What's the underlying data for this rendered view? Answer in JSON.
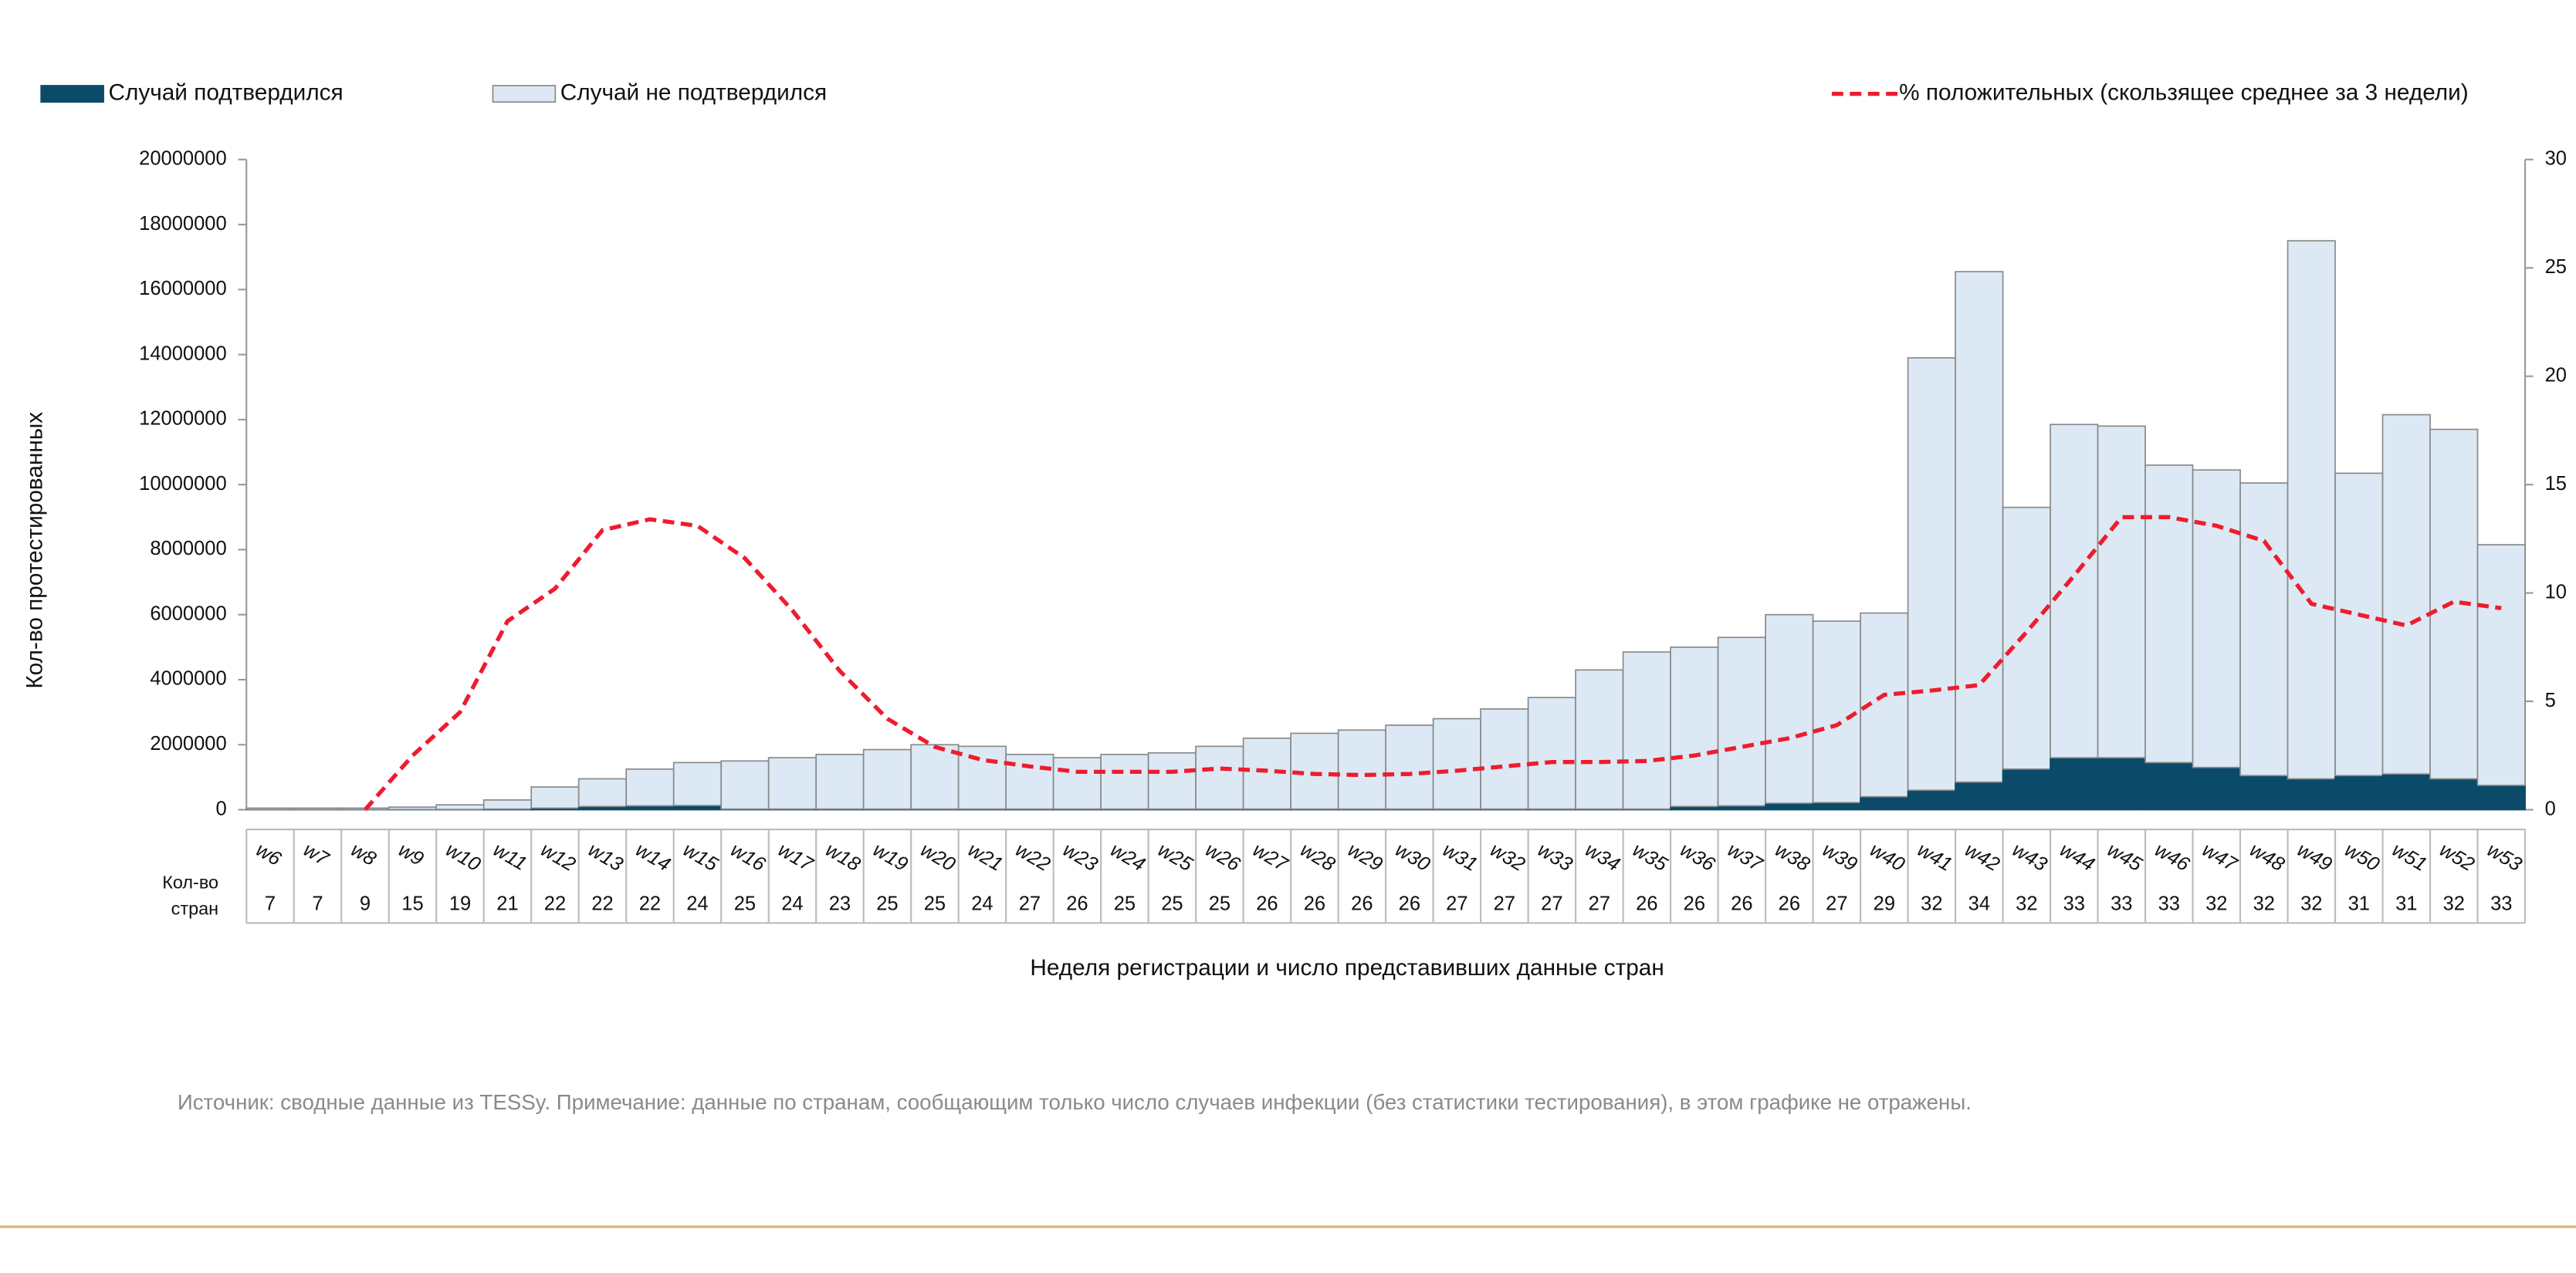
{
  "chart_data": {
    "type": "bar",
    "legend_position": "top",
    "y_label": "Кол-во протестированных",
    "x_label": "Неделя регистрации и число представивших данные стран",
    "country_label_lines": [
      "Кол-во",
      "стран"
    ],
    "note": "Источник: сводные данные из  TESSy. Примечание: данные по странам, сообщающим только число случаев инфекции (без статистики тестирования), в этом графике не отражены.",
    "categories": [
      "w6",
      "w7",
      "w8",
      "w9",
      "w10",
      "w11",
      "w12",
      "w13",
      "w14",
      "w15",
      "w16",
      "w17",
      "w18",
      "w19",
      "w20",
      "w21",
      "w22",
      "w23",
      "w24",
      "w25",
      "w26",
      "w27",
      "w28",
      "w29",
      "w30",
      "w31",
      "w32",
      "w33",
      "w34",
      "w35",
      "w36",
      "w37",
      "w38",
      "w39",
      "w40",
      "w41",
      "w42",
      "w43",
      "w44",
      "w45",
      "w46",
      "w47",
      "w48",
      "w49",
      "w50",
      "w51",
      "w52",
      "w53"
    ],
    "countries": [
      7,
      7,
      9,
      15,
      19,
      21,
      22,
      22,
      22,
      24,
      25,
      24,
      23,
      25,
      25,
      24,
      27,
      26,
      25,
      25,
      25,
      26,
      26,
      26,
      26,
      27,
      27,
      27,
      27,
      26,
      26,
      26,
      26,
      27,
      29,
      32,
      34,
      32,
      33,
      33,
      33,
      32,
      32,
      32,
      31,
      31,
      32,
      33
    ],
    "series": [
      {
        "name": "Случай подтвердился",
        "color": "#0b4a68",
        "stack": true,
        "values": [
          5000,
          5000,
          5000,
          8000,
          10000,
          20000,
          50000,
          100000,
          120000,
          130000,
          20000,
          20000,
          20000,
          20000,
          20000,
          20000,
          20000,
          20000,
          20000,
          20000,
          20000,
          20000,
          20000,
          20000,
          20000,
          20000,
          20000,
          20000,
          20000,
          20000,
          100000,
          120000,
          200000,
          220000,
          400000,
          600000,
          850000,
          1250000,
          1600000,
          1600000,
          1450000,
          1300000,
          1050000,
          950000,
          1050000,
          1100000,
          950000,
          750000
        ]
      },
      {
        "name": "Случай не подтвердился",
        "color": "#dce9f4",
        "stack": true,
        "values": [
          45000,
          45000,
          45000,
          72000,
          140000,
          280000,
          650000,
          850000,
          1130000,
          1320000,
          1480000,
          1580000,
          1680000,
          1830000,
          1980000,
          1930000,
          1680000,
          1580000,
          1680000,
          1730000,
          1930000,
          2180000,
          2330000,
          2430000,
          2580000,
          2780000,
          3080000,
          3430000,
          4280000,
          4830000,
          4900000,
          5180000,
          5800000,
          5580000,
          5650000,
          13300000,
          15700000,
          8050000,
          10250000,
          10200000,
          9150000,
          9150000,
          9000000,
          16550000,
          9300000,
          11050000,
          10750000,
          7400000
        ]
      },
      {
        "name": "% положительных (скользящее среднее за 3 недели)",
        "color": "#ee1c2e",
        "axis": "y2",
        "kind": "line",
        "values": [
          null,
          null,
          0,
          2.5,
          4.5,
          8.7,
          10.2,
          12.9,
          13.4,
          13.1,
          11.6,
          9.2,
          6.4,
          4.2,
          2.9,
          2.3,
          2.0,
          1.75,
          1.75,
          1.75,
          1.9,
          1.8,
          1.65,
          1.6,
          1.65,
          1.8,
          2.0,
          2.2,
          2.2,
          2.25,
          2.5,
          2.9,
          3.3,
          3.9,
          5.3,
          5.5,
          5.75,
          8.2,
          10.8,
          13.5,
          13.5,
          13.1,
          12.4,
          9.5,
          9.0,
          8.5,
          9.6,
          9.3
        ]
      }
    ],
    "ylim": [
      0,
      20000000
    ],
    "yticks": [
      0,
      2000000,
      4000000,
      6000000,
      8000000,
      10000000,
      12000000,
      14000000,
      16000000,
      18000000,
      20000000
    ],
    "y2lim": [
      0,
      30
    ],
    "y2ticks": [
      0,
      5,
      10,
      15,
      20,
      25,
      30
    ]
  }
}
